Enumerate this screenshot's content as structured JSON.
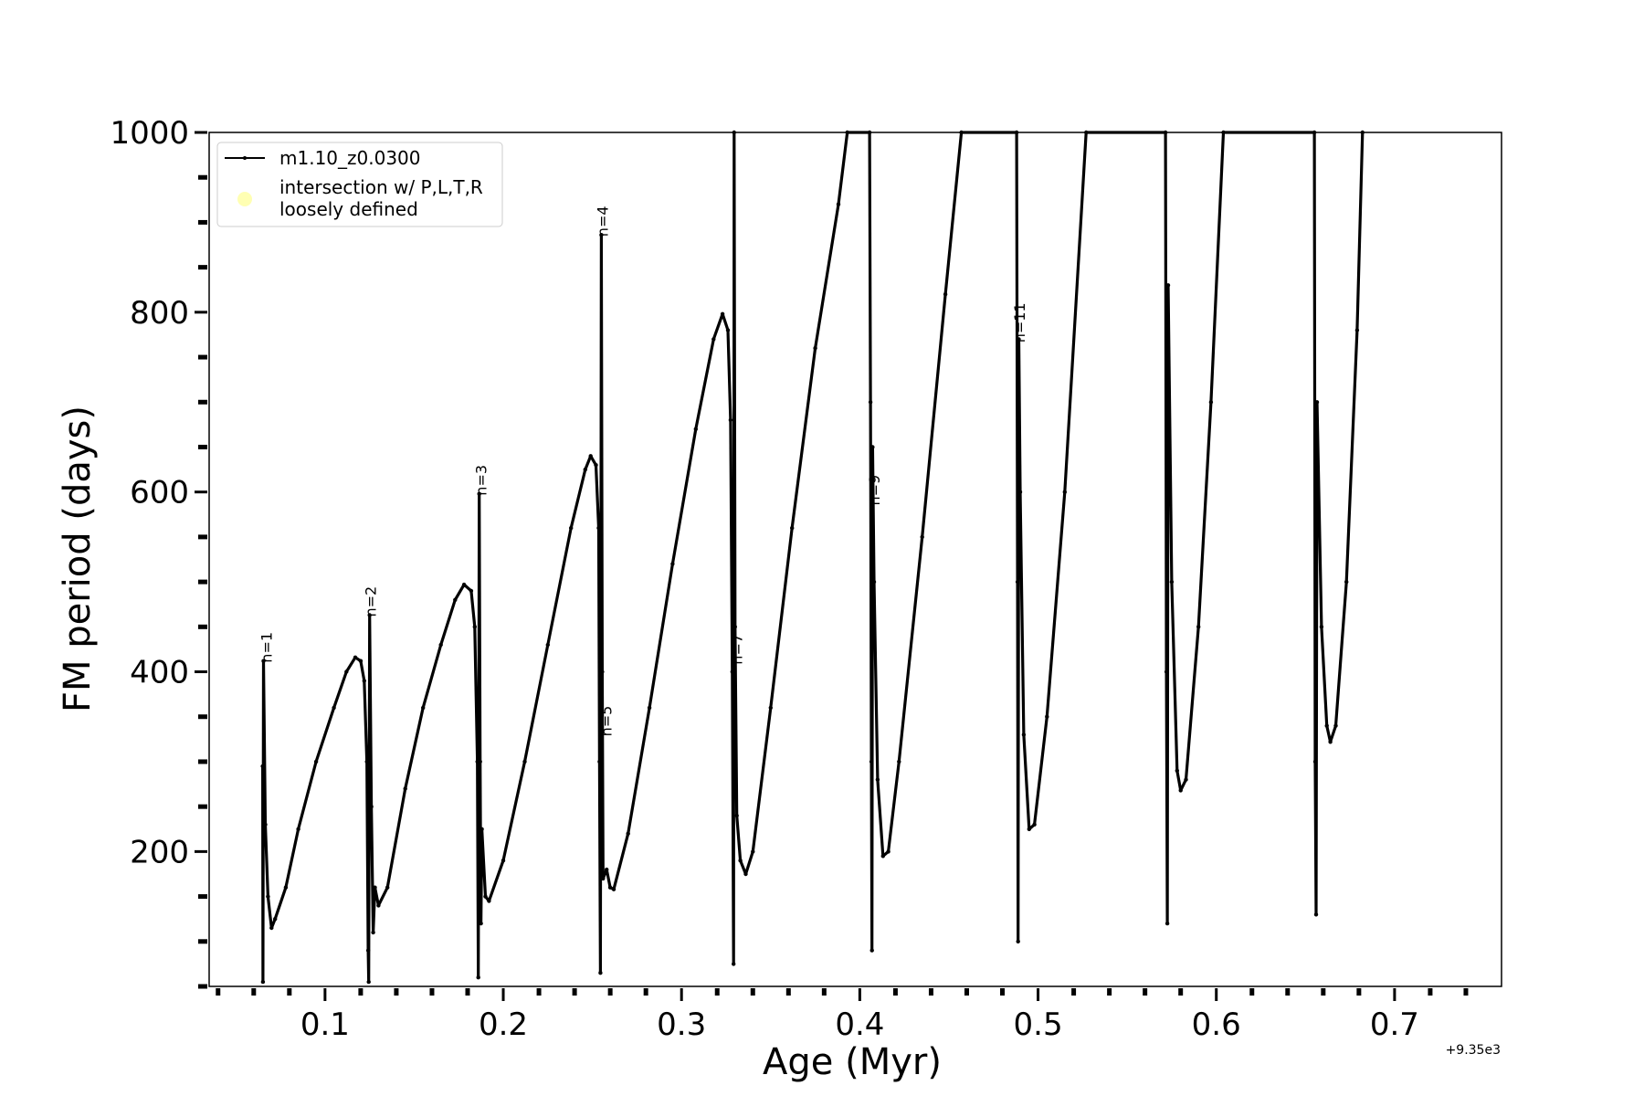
{
  "chart_data": {
    "type": "line",
    "xlabel": "Age (Myr)",
    "ylabel": "FM period (days)",
    "x_offset_label": "+9.35e3",
    "xlim": [
      0.035,
      0.76
    ],
    "ylim": [
      50,
      1000
    ],
    "x_ticks": [
      {
        "value": 0.1,
        "label": "0.1"
      },
      {
        "value": 0.2,
        "label": "0.2"
      },
      {
        "value": 0.3,
        "label": "0.3"
      },
      {
        "value": 0.4,
        "label": "0.4"
      },
      {
        "value": 0.5,
        "label": "0.5"
      },
      {
        "value": 0.6,
        "label": "0.6"
      },
      {
        "value": 0.7,
        "label": "0.7"
      }
    ],
    "y_ticks": [
      {
        "value": 200,
        "label": "200"
      },
      {
        "value": 400,
        "label": "400"
      },
      {
        "value": 600,
        "label": "600"
      },
      {
        "value": 800,
        "label": "800"
      },
      {
        "value": 1000,
        "label": "1000"
      }
    ],
    "legend": {
      "position": "top-left",
      "entries": [
        {
          "label": "m1.10_z0.0300",
          "marker": "line",
          "color": "#000000"
        },
        {
          "label": [
            "intersection w/ P,L,T,R",
            "loosely defined"
          ],
          "marker": "dot",
          "color": "#ffffb3"
        }
      ]
    },
    "series": [
      {
        "name": "m1.10_z0.0300",
        "color": "#000000",
        "points": [
          [
            0.065,
            295
          ],
          [
            0.0652,
            55
          ],
          [
            0.0655,
            412
          ],
          [
            0.0665,
            230
          ],
          [
            0.068,
            150
          ],
          [
            0.07,
            115
          ],
          [
            0.072,
            125
          ],
          [
            0.078,
            160
          ],
          [
            0.085,
            225
          ],
          [
            0.095,
            300
          ],
          [
            0.105,
            360
          ],
          [
            0.112,
            400
          ],
          [
            0.117,
            416
          ],
          [
            0.12,
            412
          ],
          [
            0.122,
            390
          ],
          [
            0.1235,
            300
          ],
          [
            0.1242,
            90
          ],
          [
            0.1245,
            55
          ],
          [
            0.125,
            463
          ],
          [
            0.126,
            250
          ],
          [
            0.127,
            110
          ],
          [
            0.128,
            160
          ],
          [
            0.13,
            140
          ],
          [
            0.135,
            160
          ],
          [
            0.145,
            270
          ],
          [
            0.155,
            360
          ],
          [
            0.165,
            430
          ],
          [
            0.173,
            480
          ],
          [
            0.178,
            497
          ],
          [
            0.182,
            490
          ],
          [
            0.184,
            450
          ],
          [
            0.1855,
            300
          ],
          [
            0.186,
            60
          ],
          [
            0.1865,
            598
          ],
          [
            0.187,
            300
          ],
          [
            0.1875,
            120
          ],
          [
            0.188,
            225
          ],
          [
            0.19,
            150
          ],
          [
            0.192,
            145
          ],
          [
            0.2,
            190
          ],
          [
            0.212,
            300
          ],
          [
            0.225,
            430
          ],
          [
            0.238,
            560
          ],
          [
            0.246,
            625
          ],
          [
            0.249,
            640
          ],
          [
            0.252,
            630
          ],
          [
            0.2535,
            560
          ],
          [
            0.254,
            300
          ],
          [
            0.2545,
            65
          ],
          [
            0.255,
            886
          ],
          [
            0.2555,
            400
          ],
          [
            0.256,
            170
          ],
          [
            0.258,
            180
          ],
          [
            0.26,
            160
          ],
          [
            0.262,
            158
          ],
          [
            0.27,
            220
          ],
          [
            0.282,
            360
          ],
          [
            0.295,
            520
          ],
          [
            0.308,
            670
          ],
          [
            0.318,
            770
          ],
          [
            0.323,
            798
          ],
          [
            0.326,
            780
          ],
          [
            0.3275,
            680
          ],
          [
            0.3285,
            400
          ],
          [
            0.3292,
            75
          ],
          [
            0.3295,
            1000
          ],
          [
            0.33,
            450
          ],
          [
            0.331,
            240
          ],
          [
            0.333,
            190
          ],
          [
            0.336,
            175
          ],
          [
            0.34,
            200
          ],
          [
            0.35,
            360
          ],
          [
            0.362,
            560
          ],
          [
            0.375,
            760
          ],
          [
            0.388,
            920
          ],
          [
            0.393,
            1000
          ],
          [
            0.4055,
            1000
          ],
          [
            0.406,
            700
          ],
          [
            0.4065,
            300
          ],
          [
            0.4068,
            90
          ],
          [
            0.4072,
            650
          ],
          [
            0.408,
            500
          ],
          [
            0.41,
            280
          ],
          [
            0.413,
            195
          ],
          [
            0.416,
            200
          ],
          [
            0.422,
            300
          ],
          [
            0.435,
            550
          ],
          [
            0.448,
            820
          ],
          [
            0.457,
            1000
          ],
          [
            0.488,
            1000
          ],
          [
            0.4885,
            500
          ],
          [
            0.4888,
            100
          ],
          [
            0.4892,
            770
          ],
          [
            0.49,
            600
          ],
          [
            0.492,
            330
          ],
          [
            0.495,
            225
          ],
          [
            0.498,
            230
          ],
          [
            0.505,
            350
          ],
          [
            0.515,
            600
          ],
          [
            0.527,
            1000
          ],
          [
            0.5715,
            1000
          ],
          [
            0.572,
            400
          ],
          [
            0.5725,
            120
          ],
          [
            0.573,
            830
          ],
          [
            0.575,
            500
          ],
          [
            0.578,
            290
          ],
          [
            0.58,
            268
          ],
          [
            0.583,
            280
          ],
          [
            0.59,
            450
          ],
          [
            0.597,
            700
          ],
          [
            0.604,
            1000
          ],
          [
            0.655,
            1000
          ],
          [
            0.6555,
            300
          ],
          [
            0.656,
            130
          ],
          [
            0.6565,
            700
          ],
          [
            0.659,
            450
          ],
          [
            0.662,
            340
          ],
          [
            0.664,
            322
          ],
          [
            0.667,
            340
          ],
          [
            0.673,
            500
          ],
          [
            0.679,
            780
          ],
          [
            0.682,
            1000
          ]
        ]
      }
    ],
    "annotations": [
      {
        "text": "n=1",
        "x": 0.067,
        "y": 412
      },
      {
        "text": "n=2",
        "x": 0.1255,
        "y": 463
      },
      {
        "text": "n=3",
        "x": 0.1875,
        "y": 598
      },
      {
        "text": "n=4",
        "x": 0.2555,
        "y": 886
      },
      {
        "text": "n=5",
        "x": 0.2575,
        "y": 330
      },
      {
        "text": "n=7",
        "x": 0.331,
        "y": 410
      },
      {
        "text": "n=9",
        "x": 0.408,
        "y": 587
      },
      {
        "text": "n=11",
        "x": 0.4895,
        "y": 768
      }
    ]
  }
}
